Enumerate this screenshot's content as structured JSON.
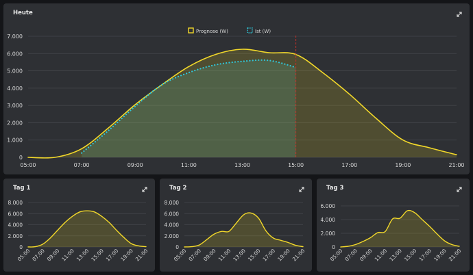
{
  "colors": {
    "prognose_line": "#f2d82a",
    "prognose_fill": "rgba(200,180,40,0.22)",
    "ist_line": "#30c6d8",
    "ist_fill": "rgba(90,190,170,0.18)",
    "now_marker": "#c0302a",
    "grid": "#45474c",
    "axis_text": "#d8d8d8"
  },
  "icons": {
    "expand": "expand-arrows-icon"
  },
  "chart_data": [
    {
      "type": "area",
      "title": "Heute",
      "x": [
        "05:00",
        "06:00",
        "07:00",
        "08:00",
        "09:00",
        "10:00",
        "11:00",
        "12:00",
        "13:00",
        "14:00",
        "15:00",
        "16:00",
        "17:00",
        "18:00",
        "19:00",
        "20:00",
        "21:00"
      ],
      "xticks": [
        "05:00",
        "07:00",
        "09:00",
        "11:00",
        "13:00",
        "15:00",
        "17:00",
        "19:00",
        "21:00"
      ],
      "yticks": [
        "0",
        "1.000",
        "2.000",
        "3.000",
        "4.000",
        "5.000",
        "6.000",
        "7.000"
      ],
      "ylim": [
        0,
        7000
      ],
      "now": "15:00",
      "legend_position": "top",
      "series": [
        {
          "name": "Prognose (W)",
          "style": "solid",
          "values": [
            0,
            0,
            500,
            1700,
            3050,
            4200,
            5250,
            5950,
            6250,
            6050,
            5950,
            4900,
            3650,
            2250,
            1000,
            550,
            150
          ]
        },
        {
          "name": "Ist (W)",
          "style": "dotted",
          "values": [
            null,
            null,
            250,
            1550,
            2950,
            4200,
            4900,
            5350,
            5550,
            5600,
            5200,
            null,
            null,
            null,
            null,
            null,
            null
          ]
        }
      ]
    },
    {
      "type": "area",
      "title": "Tag 1",
      "x": [
        "05:00",
        "06:00",
        "07:00",
        "08:00",
        "09:00",
        "10:00",
        "11:00",
        "12:00",
        "13:00",
        "14:00",
        "15:00",
        "16:00",
        "17:00",
        "18:00",
        "19:00",
        "20:00",
        "21:00"
      ],
      "xticks": [
        "05:00",
        "07:00",
        "09:00",
        "11:00",
        "13:00",
        "15:00",
        "17:00",
        "19:00",
        "21:00"
      ],
      "yticks": [
        "0",
        "2.000",
        "4.000",
        "6.000",
        "8.000"
      ],
      "ylim": [
        0,
        8000
      ],
      "series": [
        {
          "values": [
            0,
            50,
            500,
            1600,
            3000,
            4400,
            5500,
            6300,
            6500,
            6300,
            5500,
            4400,
            3000,
            1700,
            600,
            200,
            50
          ]
        }
      ]
    },
    {
      "type": "area",
      "title": "Tag 2",
      "x": [
        "05:00",
        "06:00",
        "07:00",
        "08:00",
        "09:00",
        "10:00",
        "11:00",
        "12:00",
        "13:00",
        "14:00",
        "15:00",
        "16:00",
        "17:00",
        "18:00",
        "19:00",
        "20:00",
        "21:00"
      ],
      "xticks": [
        "05:00",
        "07:00",
        "09:00",
        "11:00",
        "13:00",
        "15:00",
        "17:00",
        "19:00",
        "21:00"
      ],
      "yticks": [
        "0",
        "2.000",
        "4.000",
        "6.000",
        "8.000"
      ],
      "ylim": [
        0,
        8000
      ],
      "series": [
        {
          "values": [
            0,
            50,
            350,
            1300,
            2300,
            2800,
            2800,
            4300,
            5800,
            6100,
            5200,
            2900,
            1600,
            1200,
            800,
            300,
            50
          ]
        }
      ]
    },
    {
      "type": "area",
      "title": "Tag 3",
      "x": [
        "05:00",
        "06:00",
        "07:00",
        "08:00",
        "09:00",
        "10:00",
        "11:00",
        "12:00",
        "13:00",
        "14:00",
        "15:00",
        "16:00",
        "17:00",
        "18:00",
        "19:00",
        "20:00",
        "21:00"
      ],
      "xticks": [
        "05:00",
        "07:00",
        "09:00",
        "11:00",
        "13:00",
        "15:00",
        "17:00",
        "19:00",
        "21:00"
      ],
      "yticks": [
        "0",
        "2.000",
        "4.000",
        "6.000"
      ],
      "ylim": [
        0,
        6500
      ],
      "series": [
        {
          "values": [
            0,
            100,
            350,
            800,
            1350,
            2100,
            2250,
            4100,
            4200,
            5300,
            5000,
            4000,
            3000,
            1900,
            900,
            350,
            100
          ]
        }
      ]
    }
  ]
}
